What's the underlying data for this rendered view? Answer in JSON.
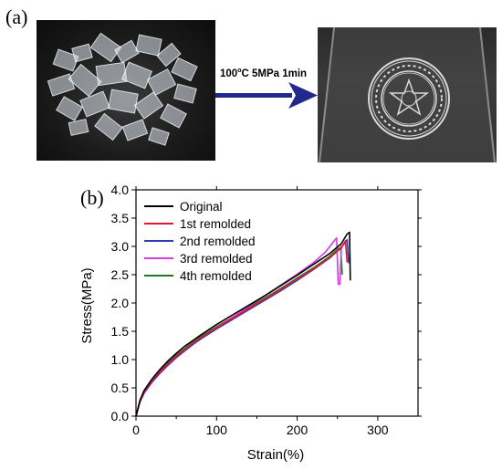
{
  "panel_a": {
    "label": "(a)",
    "process": {
      "temp": "100",
      "temp_unit": "C",
      "rest": " 5MPa 1min"
    }
  },
  "panel_b": {
    "label": "(b)"
  },
  "chart_data": {
    "type": "line",
    "xlabel": "Strain(%)",
    "ylabel": "Stress(MPa)",
    "xlim": [
      0,
      350
    ],
    "ylim": [
      0,
      4.0
    ],
    "x_ticks": [
      0,
      100,
      200,
      300
    ],
    "y_ticks": [
      0.0,
      0.5,
      1.0,
      1.5,
      2.0,
      2.5,
      3.0,
      3.5,
      4.0
    ],
    "legend_position": "top-left",
    "grid": false,
    "series": [
      {
        "name": "Original",
        "color": "#000000",
        "points": [
          [
            0,
            0
          ],
          [
            5,
            0.28
          ],
          [
            10,
            0.45
          ],
          [
            20,
            0.66
          ],
          [
            30,
            0.83
          ],
          [
            40,
            0.98
          ],
          [
            50,
            1.11
          ],
          [
            60,
            1.23
          ],
          [
            70,
            1.33
          ],
          [
            80,
            1.43
          ],
          [
            100,
            1.62
          ],
          [
            120,
            1.79
          ],
          [
            140,
            1.96
          ],
          [
            160,
            2.13
          ],
          [
            180,
            2.31
          ],
          [
            200,
            2.49
          ],
          [
            220,
            2.68
          ],
          [
            240,
            2.87
          ],
          [
            255,
            3.05
          ],
          [
            262,
            3.22
          ],
          [
            265,
            3.25
          ],
          [
            266,
            2.4
          ]
        ]
      },
      {
        "name": "1st remolded",
        "color": "#e8142a",
        "points": [
          [
            0,
            0
          ],
          [
            5,
            0.27
          ],
          [
            10,
            0.43
          ],
          [
            20,
            0.63
          ],
          [
            30,
            0.79
          ],
          [
            40,
            0.93
          ],
          [
            50,
            1.06
          ],
          [
            60,
            1.17
          ],
          [
            70,
            1.28
          ],
          [
            80,
            1.38
          ],
          [
            100,
            1.56
          ],
          [
            120,
            1.73
          ],
          [
            140,
            1.9
          ],
          [
            160,
            2.07
          ],
          [
            180,
            2.24
          ],
          [
            200,
            2.42
          ],
          [
            220,
            2.6
          ],
          [
            240,
            2.8
          ],
          [
            255,
            2.98
          ],
          [
            260,
            3.1
          ],
          [
            262,
            2.72
          ]
        ]
      },
      {
        "name": "2nd remolded",
        "color": "#2a3fbf",
        "points": [
          [
            0,
            0
          ],
          [
            5,
            0.26
          ],
          [
            10,
            0.42
          ],
          [
            20,
            0.61
          ],
          [
            30,
            0.77
          ],
          [
            40,
            0.91
          ],
          [
            50,
            1.04
          ],
          [
            60,
            1.15
          ],
          [
            70,
            1.26
          ],
          [
            80,
            1.36
          ],
          [
            100,
            1.54
          ],
          [
            120,
            1.71
          ],
          [
            140,
            1.88
          ],
          [
            160,
            2.05
          ],
          [
            180,
            2.22
          ],
          [
            200,
            2.4
          ],
          [
            220,
            2.59
          ],
          [
            240,
            2.79
          ],
          [
            255,
            2.98
          ],
          [
            262,
            3.12
          ],
          [
            264,
            2.7
          ]
        ]
      },
      {
        "name": "3rd remolded",
        "color": "#d43be0",
        "points": [
          [
            0,
            0
          ],
          [
            5,
            0.25
          ],
          [
            10,
            0.4
          ],
          [
            20,
            0.6
          ],
          [
            30,
            0.76
          ],
          [
            40,
            0.9
          ],
          [
            50,
            1.03
          ],
          [
            60,
            1.15
          ],
          [
            70,
            1.26
          ],
          [
            80,
            1.37
          ],
          [
            100,
            1.56
          ],
          [
            120,
            1.75
          ],
          [
            140,
            1.94
          ],
          [
            160,
            2.13
          ],
          [
            180,
            2.32
          ],
          [
            200,
            2.51
          ],
          [
            220,
            2.71
          ],
          [
            235,
            2.9
          ],
          [
            245,
            3.08
          ],
          [
            249,
            3.15
          ],
          [
            251,
            2.33
          ],
          [
            253,
            2.33
          ],
          [
            255,
            3.02
          ]
        ]
      },
      {
        "name": "4th remolded",
        "color": "#1f7a1f",
        "points": [
          [
            0,
            0
          ],
          [
            5,
            0.27
          ],
          [
            10,
            0.44
          ],
          [
            20,
            0.64
          ],
          [
            30,
            0.8
          ],
          [
            40,
            0.95
          ],
          [
            50,
            1.08
          ],
          [
            60,
            1.19
          ],
          [
            70,
            1.3
          ],
          [
            80,
            1.4
          ],
          [
            100,
            1.58
          ],
          [
            120,
            1.75
          ],
          [
            140,
            1.92
          ],
          [
            160,
            2.09
          ],
          [
            180,
            2.26
          ],
          [
            200,
            2.44
          ],
          [
            220,
            2.62
          ],
          [
            240,
            2.82
          ],
          [
            250,
            2.95
          ],
          [
            254,
            2.98
          ],
          [
            256,
            2.5
          ]
        ]
      }
    ]
  }
}
